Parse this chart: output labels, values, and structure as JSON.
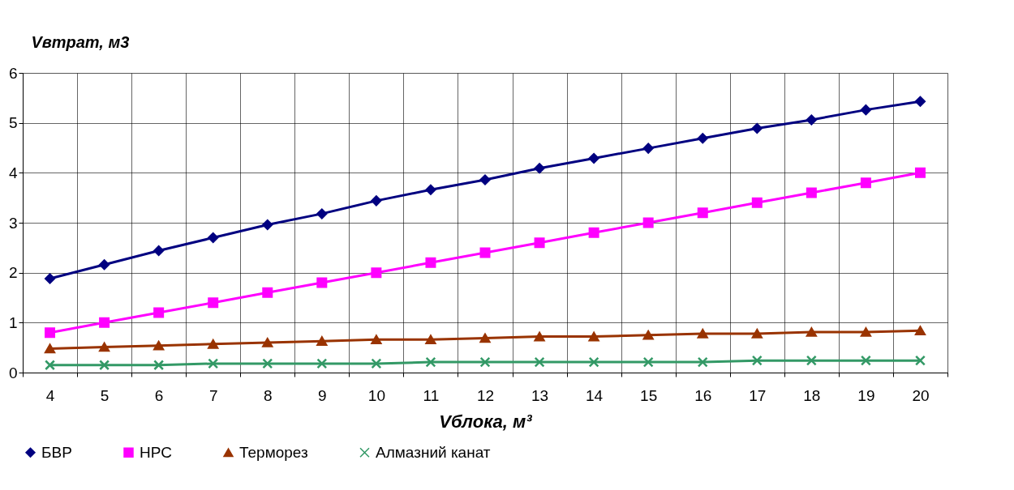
{
  "chart_data": {
    "type": "line",
    "ylabel": "Vвтрат, м3",
    "xlabel": "Vблока, м³",
    "categories": [
      "4",
      "5",
      "6",
      "7",
      "8",
      "9",
      "10",
      "11",
      "12",
      "13",
      "14",
      "15",
      "16",
      "17",
      "18",
      "19",
      "20"
    ],
    "series": [
      {
        "name": "БВР",
        "color": "#000080",
        "marker": "diamond",
        "values": [
          1.88,
          2.16,
          2.44,
          2.7,
          2.96,
          3.18,
          3.44,
          3.66,
          3.86,
          4.09,
          4.29,
          4.49,
          4.69,
          4.89,
          5.06,
          5.26,
          5.43
        ]
      },
      {
        "name": "НРС",
        "color": "#ff00ff",
        "marker": "square",
        "values": [
          0.8,
          1.0,
          1.2,
          1.4,
          1.6,
          1.8,
          2.0,
          2.2,
          2.4,
          2.6,
          2.8,
          3.0,
          3.2,
          3.4,
          3.6,
          3.8,
          4.0
        ]
      },
      {
        "name": "Терморез",
        "color": "#993300",
        "marker": "triangle",
        "values": [
          0.48,
          0.51,
          0.54,
          0.57,
          0.6,
          0.63,
          0.66,
          0.66,
          0.69,
          0.72,
          0.72,
          0.75,
          0.78,
          0.78,
          0.81,
          0.81,
          0.84
        ]
      },
      {
        "name": "Алмазний канат",
        "color": "#339966",
        "marker": "cross",
        "values": [
          0.15,
          0.15,
          0.15,
          0.18,
          0.18,
          0.18,
          0.18,
          0.21,
          0.21,
          0.21,
          0.21,
          0.21,
          0.21,
          0.24,
          0.24,
          0.24,
          0.24
        ]
      }
    ],
    "ylim": [
      0,
      6
    ],
    "yticks": [
      0,
      1,
      2,
      3,
      4,
      5,
      6
    ],
    "grid": true,
    "legend": "bottom",
    "line_style": "solid"
  }
}
